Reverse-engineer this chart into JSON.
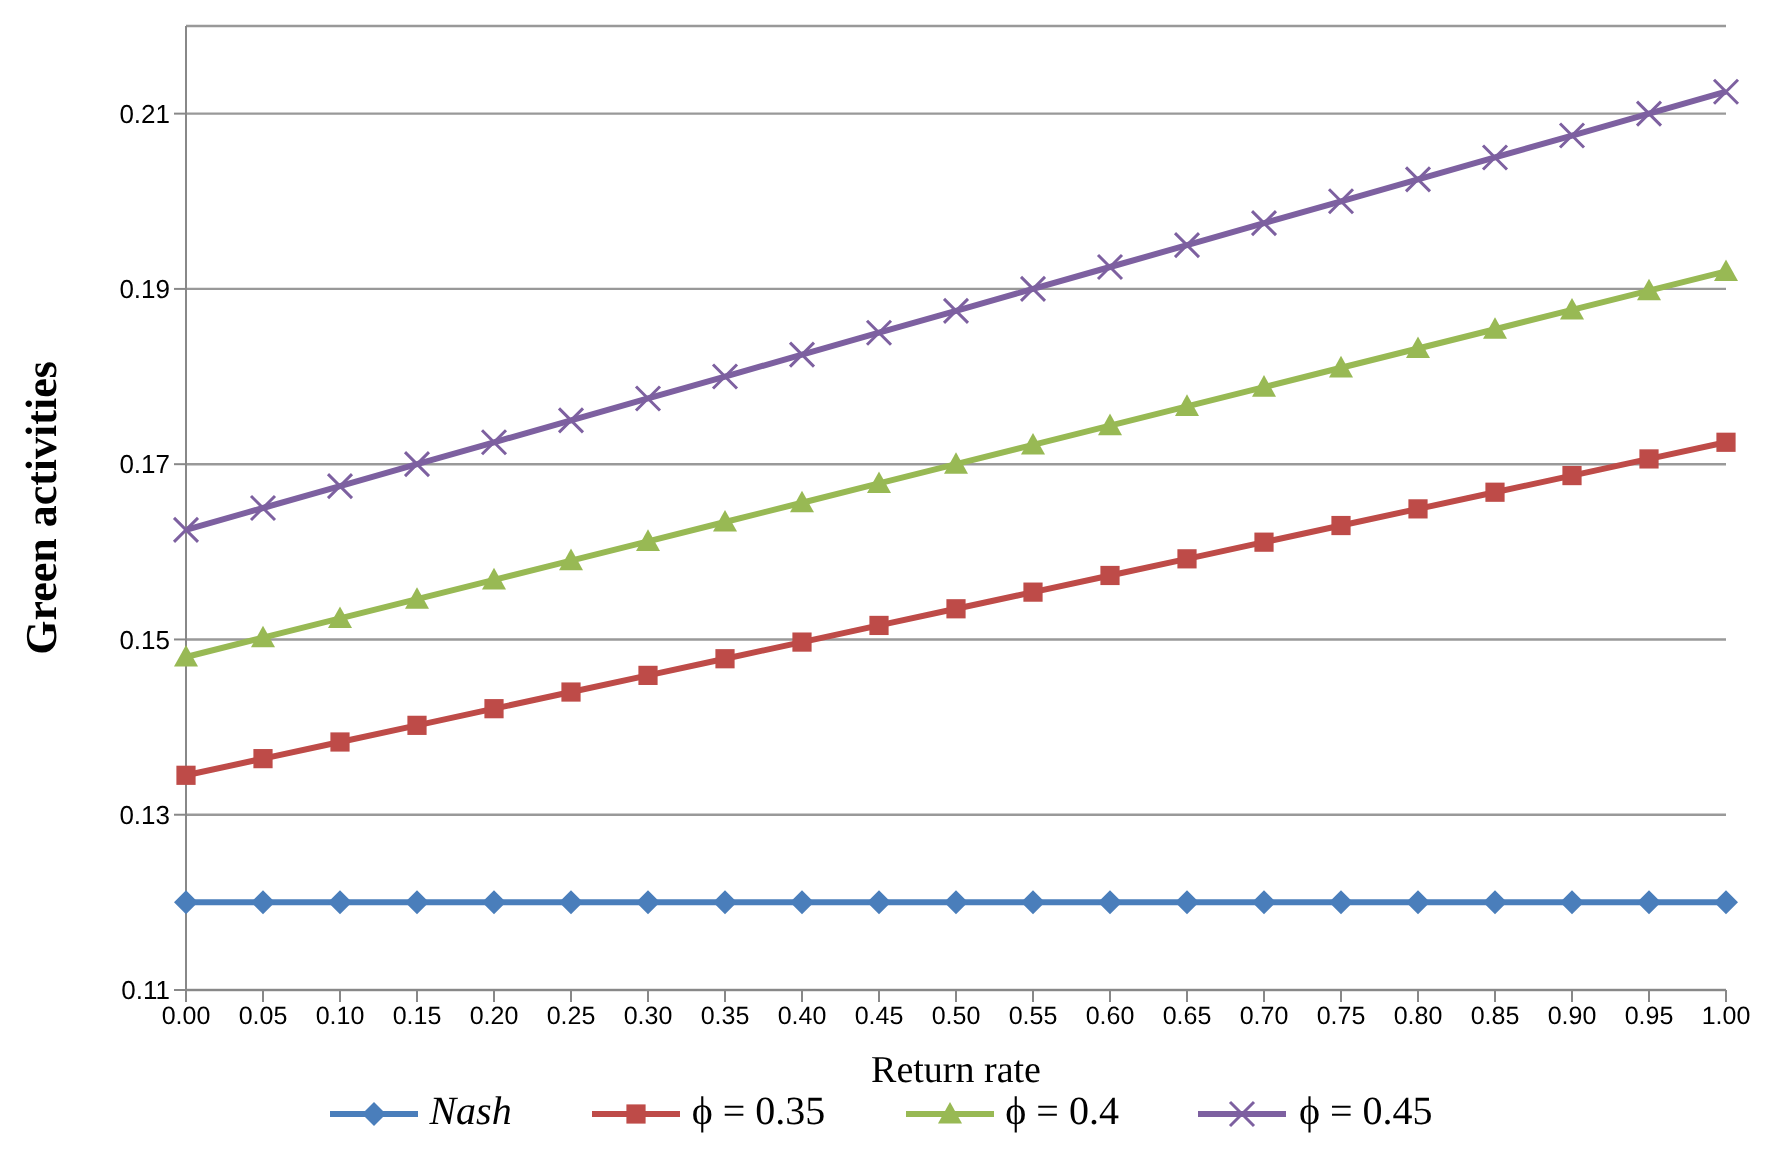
{
  "chart_data": {
    "type": "line",
    "xlabel": "Return rate",
    "ylabel": "Green activities",
    "categories": [
      "0.00",
      "0.05",
      "0.10",
      "0.15",
      "0.20",
      "0.25",
      "0.30",
      "0.35",
      "0.40",
      "0.45",
      "0.50",
      "0.55",
      "0.60",
      "0.65",
      "0.70",
      "0.75",
      "0.80",
      "0.85",
      "0.90",
      "0.95",
      "1.00"
    ],
    "series": [
      {
        "name": "Nash",
        "color": "#4a7ebb",
        "marker": "diamond",
        "values": [
          0.12,
          0.12,
          0.12,
          0.12,
          0.12,
          0.12,
          0.12,
          0.12,
          0.12,
          0.12,
          0.12,
          0.12,
          0.12,
          0.12,
          0.12,
          0.12,
          0.12,
          0.12,
          0.12,
          0.12,
          0.12
        ]
      },
      {
        "name": "ϕ = 0.35",
        "color": "#be4b48",
        "marker": "square",
        "values": [
          0.1345,
          0.1364,
          0.1383,
          0.1402,
          0.1421,
          0.144,
          0.1459,
          0.1478,
          0.1497,
          0.1516,
          0.1535,
          0.1554,
          0.1573,
          0.1592,
          0.1611,
          0.163,
          0.1649,
          0.1668,
          0.1687,
          0.1706,
          0.1725
        ]
      },
      {
        "name": "ϕ = 0.4",
        "color": "#98b954",
        "marker": "triangle",
        "values": [
          0.148,
          0.1502,
          0.1524,
          0.1546,
          0.1568,
          0.159,
          0.1612,
          0.1634,
          0.1656,
          0.1678,
          0.17,
          0.1722,
          0.1744,
          0.1766,
          0.1788,
          0.181,
          0.1832,
          0.1854,
          0.1876,
          0.1898,
          0.192
        ]
      },
      {
        "name": "ϕ = 0.45",
        "color": "#7d60a0",
        "marker": "cross",
        "values": [
          0.1625,
          0.165,
          0.1675,
          0.17,
          0.1725,
          0.175,
          0.1775,
          0.18,
          0.1825,
          0.185,
          0.1875,
          0.19,
          0.1925,
          0.195,
          0.1975,
          0.2,
          0.2025,
          0.205,
          0.2075,
          0.21,
          0.2125
        ]
      }
    ],
    "ylim": [
      0.11,
      0.22
    ],
    "yticks": [
      0.11,
      0.13,
      0.15,
      0.17,
      0.19,
      0.21
    ],
    "grid": "y",
    "legend": "bottom",
    "line_style": "solid"
  }
}
